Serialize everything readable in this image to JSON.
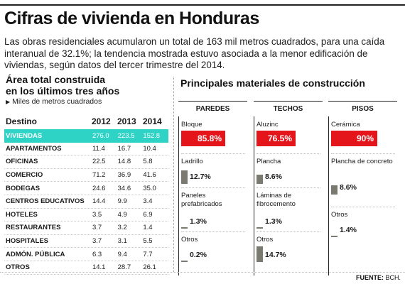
{
  "header": {
    "title": "Cifras de vivienda en Honduras",
    "lede": "Las obras residenciales acumularon un total de 163 mil metros cuadrados, para una caída interanual de 32.1%; la tendencia mostrada estuvo asociada a la menor edificación de viviendas, según datos del tercer trimestre del 2014."
  },
  "left": {
    "title_line1": "Área total construida",
    "title_line2": "en los últimos tres años",
    "unit": "Miles de metros cuadrados",
    "unit_marker": "▶"
  },
  "right": {
    "title": "Principales materiales de construcción"
  },
  "source": {
    "label": "FUENTE:",
    "value": "BCH."
  },
  "chart_data": [
    {
      "type": "table",
      "title": "Área total construida en los últimos tres años",
      "subtitle": "Miles de metros cuadrados",
      "columns": [
        "Destino",
        "2012",
        "2013",
        "2014"
      ],
      "rows": [
        {
          "destino": "VIVIENDAS",
          "values": [
            "276.0",
            "223.5",
            "152.8"
          ],
          "highlight": true
        },
        {
          "destino": "APARTAMENTOS",
          "values": [
            "11.4",
            "16.7",
            "10.4"
          ]
        },
        {
          "destino": "OFICINAS",
          "values": [
            "22.5",
            "14.8",
            "5.8"
          ]
        },
        {
          "destino": "COMERCIO",
          "values": [
            "71.2",
            "36.9",
            "41.6"
          ]
        },
        {
          "destino": "BODEGAS",
          "values": [
            "24.6",
            "34.6",
            "35.0"
          ]
        },
        {
          "destino": "CENTROS EDUCATIVOS",
          "values": [
            "14.4",
            "9.9",
            "3.4"
          ]
        },
        {
          "destino": "HOTELES",
          "values": [
            "3.5",
            "4.9",
            "6.9"
          ]
        },
        {
          "destino": "RESTAURANTES",
          "values": [
            "3.7",
            "3.2",
            "1.4"
          ]
        },
        {
          "destino": "HOSPITALES",
          "values": [
            "3.7",
            "3.1",
            "5.5"
          ]
        },
        {
          "destino": "ADMÓN. PÚBLICA",
          "values": [
            "6.3",
            "9.4",
            "7.7"
          ]
        },
        {
          "destino": "OTROS",
          "values": [
            "14.1",
            "28.7",
            "26.1"
          ]
        }
      ],
      "highlight_color": "#2ed3c6"
    },
    {
      "type": "bar",
      "title": "Principales materiales de construcción",
      "colors": {
        "major": "#e4151b",
        "minor": "#7a7a70"
      },
      "groups": [
        {
          "name": "PAREDES",
          "items": [
            {
              "label": "Bloque",
              "value": 85.8,
              "text": "85.8%"
            },
            {
              "label": "Ladrillo",
              "value": 12.7,
              "text": "12.7%"
            },
            {
              "label": "Paneles prefabricados",
              "value": 1.3,
              "text": "1.3%"
            },
            {
              "label": "Otros",
              "value": 0.2,
              "text": "0.2%"
            }
          ]
        },
        {
          "name": "TECHOS",
          "items": [
            {
              "label": "Aluzinc",
              "value": 76.5,
              "text": "76.5%"
            },
            {
              "label": "Plancha",
              "value": 8.6,
              "text": "8.6%"
            },
            {
              "label": "Láminas de fibrocemento",
              "value": 1.3,
              "text": "1.3%"
            },
            {
              "label": "Otros",
              "value": 14.7,
              "text": "14.7%"
            }
          ]
        },
        {
          "name": "PISOS",
          "items": [
            {
              "label": "Cerámica",
              "value": 90,
              "text": "90%"
            },
            {
              "label": "Plancha de concreto",
              "value": 8.6,
              "text": "8.6%"
            },
            {
              "label": "Otros",
              "value": 1.4,
              "text": "1.4%"
            }
          ]
        }
      ]
    }
  ]
}
